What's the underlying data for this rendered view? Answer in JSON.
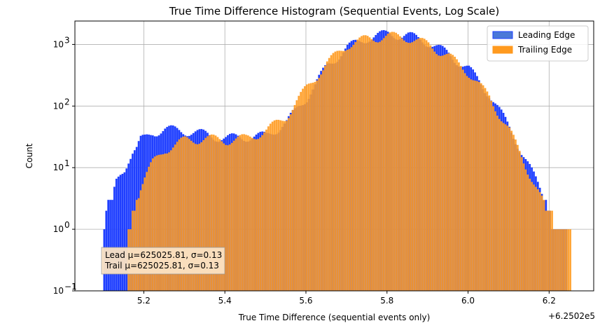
{
  "chart_data": {
    "type": "bar",
    "title": "True Time Difference Histogram (Sequential Events, Log Scale)",
    "xlabel": "True Time Difference (sequential events only)",
    "ylabel": "Count",
    "x_offset_label": "+6.2502e5",
    "xlim": [
      5.03,
      6.31
    ],
    "ylim": [
      0.1,
      2400
    ],
    "y_scale": "log",
    "grid": true,
    "legend_position": "top-right",
    "x_ticks": [
      "5.2",
      "5.4",
      "5.6",
      "5.8",
      "6.0",
      "6.2"
    ],
    "x_tick_values": [
      5.2,
      5.4,
      5.6,
      5.8,
      6.0,
      6.2
    ],
    "y_ticks": [
      {
        "value": 0.1,
        "base": "10",
        "exp": "−1"
      },
      {
        "value": 1,
        "base": "10",
        "exp": "0"
      },
      {
        "value": 10,
        "base": "10",
        "exp": "1"
      },
      {
        "value": 100,
        "base": "10",
        "exp": "2"
      },
      {
        "value": 1000,
        "base": "10",
        "exp": "3"
      }
    ],
    "annotation": [
      "Lead μ=625025.81, σ=0.13",
      "Trail μ=625025.81, σ=0.13"
    ],
    "series": [
      {
        "name": "Leading Edge",
        "color": "#1f3fff",
        "legend_color": "#4a78d8",
        "x": [
          5.1,
          5.11,
          5.12,
          5.13,
          5.14,
          5.15,
          5.16,
          5.17,
          5.18,
          5.19,
          5.2,
          5.22,
          5.25,
          5.3,
          5.35,
          5.4,
          5.45,
          5.5,
          5.55,
          5.6,
          5.65,
          5.7,
          5.75,
          5.8,
          5.85,
          5.9,
          5.95,
          6.0,
          6.05,
          6.1,
          6.15,
          6.18,
          6.2,
          6.21,
          6.22,
          6.23,
          6.24
        ],
        "values": [
          1,
          3,
          3,
          6,
          8,
          10,
          14,
          18,
          20,
          28,
          30,
          38,
          42,
          40,
          35,
          30,
          32,
          33,
          55,
          140,
          450,
          900,
          1300,
          1500,
          1400,
          1100,
          700,
          400,
          160,
          45,
          10,
          4,
          2,
          1,
          1,
          1,
          1
        ]
      },
      {
        "name": "Trailing Edge",
        "color": "#ff9a1f",
        "legend_color": "#ff9a1f",
        "x": [
          5.16,
          5.17,
          5.18,
          5.19,
          5.2,
          5.22,
          5.25,
          5.3,
          5.35,
          5.4,
          5.45,
          5.5,
          5.55,
          5.6,
          5.65,
          5.7,
          5.75,
          5.8,
          5.85,
          5.9,
          5.95,
          6.0,
          6.05,
          6.1,
          6.15,
          6.18,
          6.2,
          6.22,
          6.24,
          6.25
        ],
        "values": [
          1,
          2,
          3,
          5,
          7,
          12,
          20,
          28,
          30,
          28,
          30,
          40,
          70,
          200,
          500,
          1000,
          1250,
          1380,
          1300,
          1000,
          650,
          350,
          140,
          40,
          8,
          3,
          2,
          1,
          1,
          1
        ]
      }
    ]
  }
}
